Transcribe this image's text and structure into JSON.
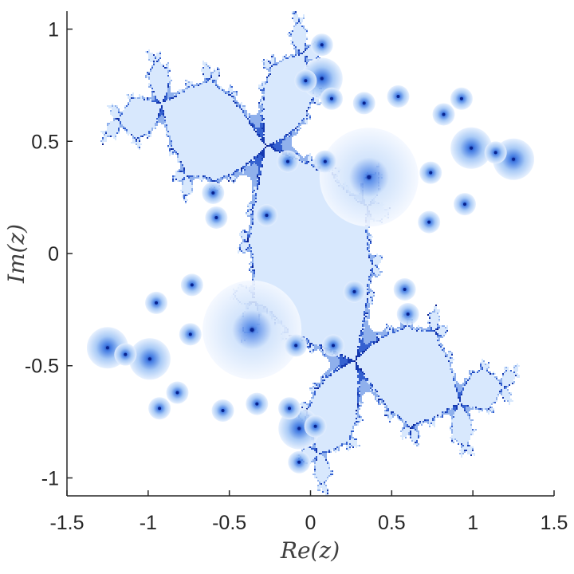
{
  "chart_data": {
    "type": "scatter",
    "title": "",
    "xlabel": "Re(z)",
    "ylabel": "Im(z)",
    "xlim": [
      -1.5,
      1.5
    ],
    "ylim": [
      -1.08,
      1.08
    ],
    "x_ticks": [
      -1.5,
      -1,
      -0.5,
      0,
      0.5,
      1,
      1.5
    ],
    "x_tick_labels": [
      "-1.5",
      "-1",
      "-0.5",
      "0",
      "0.5",
      "1",
      "1.5"
    ],
    "y_ticks": [
      -1,
      -0.5,
      0,
      0.5,
      1
    ],
    "y_tick_labels": [
      "-1",
      "-0.5",
      "0",
      "0.5",
      "1"
    ],
    "grid": false,
    "legend": "none",
    "colors": {
      "interior_center": "#0b2fa8",
      "interior_light": "#eaf3ff",
      "boundary": "#0a1f8f"
    },
    "series": [
      {
        "values": [
          {
            "x": 0.36,
            "y": 0.34
          },
          {
            "x": -0.36,
            "y": -0.34
          },
          {
            "x": 0.99,
            "y": 0.47
          },
          {
            "x": -0.99,
            "y": -0.47
          },
          {
            "x": 0.07,
            "y": 0.78
          },
          {
            "x": -0.07,
            "y": -0.78
          },
          {
            "x": 1.25,
            "y": 0.42
          },
          {
            "x": -1.25,
            "y": -0.42
          },
          {
            "x": -0.58,
            "y": 0.16
          },
          {
            "x": 0.58,
            "y": -0.16
          },
          {
            "x": 0.09,
            "y": 0.41
          },
          {
            "x": -0.09,
            "y": -0.41
          },
          {
            "x": 0.54,
            "y": 0.7
          },
          {
            "x": -0.54,
            "y": -0.7
          },
          {
            "x": 0.95,
            "y": 0.22
          },
          {
            "x": -0.95,
            "y": -0.22
          },
          {
            "x": 0.73,
            "y": 0.14
          },
          {
            "x": -0.73,
            "y": -0.14
          },
          {
            "x": 0.82,
            "y": 0.62
          },
          {
            "x": -0.82,
            "y": -0.62
          },
          {
            "x": 0.93,
            "y": 0.69
          },
          {
            "x": -0.93,
            "y": -0.69
          },
          {
            "x": -0.14,
            "y": 0.41
          },
          {
            "x": 0.14,
            "y": -0.41
          },
          {
            "x": -0.27,
            "y": 0.17
          },
          {
            "x": 0.27,
            "y": -0.17
          },
          {
            "x": 0.07,
            "y": 0.93
          },
          {
            "x": -0.07,
            "y": -0.93
          },
          {
            "x": -0.03,
            "y": 0.77
          },
          {
            "x": 0.03,
            "y": -0.77
          },
          {
            "x": 0.33,
            "y": 0.67
          },
          {
            "x": -0.33,
            "y": -0.67
          },
          {
            "x": 0.74,
            "y": 0.36
          },
          {
            "x": -0.74,
            "y": -0.36
          },
          {
            "x": -0.6,
            "y": 0.27
          },
          {
            "x": 0.6,
            "y": -0.27
          },
          {
            "x": 0.13,
            "y": 0.69
          },
          {
            "x": -0.13,
            "y": -0.69
          },
          {
            "x": 1.14,
            "y": 0.45
          },
          {
            "x": -1.14,
            "y": -0.45
          }
        ]
      }
    ]
  }
}
